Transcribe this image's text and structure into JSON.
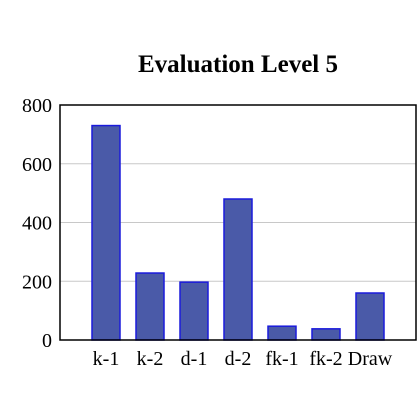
{
  "chart_data": {
    "type": "bar",
    "title": "Evaluation Level 5",
    "xlabel": "",
    "ylabel": "",
    "categories": [
      "k-1",
      "k-2",
      "d-1",
      "d-2",
      "fk-1",
      "fk-2",
      "Draw"
    ],
    "values": [
      730,
      228,
      197,
      480,
      47,
      38,
      160
    ],
    "ylim": [
      0,
      800
    ],
    "yticks": [
      0,
      200,
      400,
      600,
      800
    ],
    "grid": true,
    "colors": {
      "bar_fill": "#4a5aa8",
      "bar_stroke": "#1a1adc"
    }
  }
}
